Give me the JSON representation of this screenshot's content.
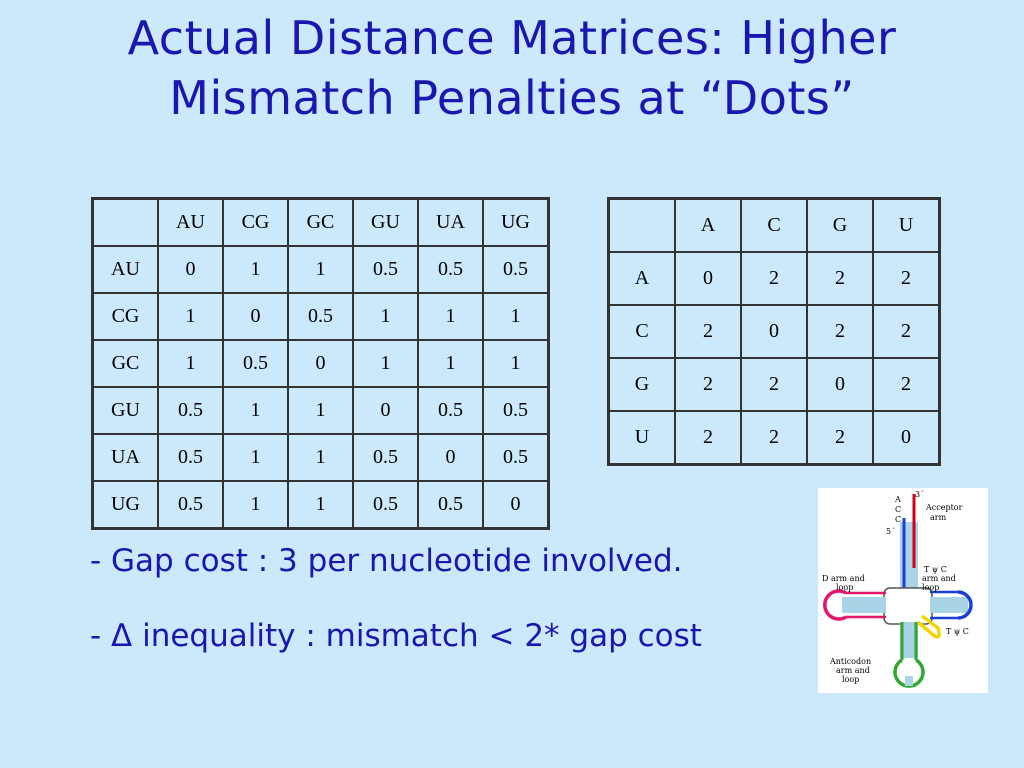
{
  "slide": {
    "title_line1": "Actual Distance Matrices: Higher",
    "title_line2": "Mismatch Penalties at “Dots”",
    "bullets": [
      "- Gap cost : 3 per nucleotide involved.",
      "- Δ inequality : mismatch < 2* gap cost"
    ]
  },
  "pair_matrix": {
    "headers": [
      "",
      "AU",
      "CG",
      "GC",
      "GU",
      "UA",
      "UG"
    ],
    "rows": [
      [
        "AU",
        "0",
        "1",
        "1",
        "0.5",
        "0.5",
        "0.5"
      ],
      [
        "CG",
        "1",
        "0",
        "0.5",
        "1",
        "1",
        "1"
      ],
      [
        "GC",
        "1",
        "0.5",
        "0",
        "1",
        "1",
        "1"
      ],
      [
        "GU",
        "0.5",
        "1",
        "1",
        "0",
        "0.5",
        "0.5"
      ],
      [
        "UA",
        "0.5",
        "1",
        "1",
        "0.5",
        "0",
        "0.5"
      ],
      [
        "UG",
        "0.5",
        "1",
        "1",
        "0.5",
        "0.5",
        "0"
      ]
    ]
  },
  "base_matrix": {
    "headers": [
      "",
      "A",
      "C",
      "G",
      "U"
    ],
    "rows": [
      [
        "A",
        "0",
        "2",
        "2",
        "2"
      ],
      [
        "C",
        "2",
        "0",
        "2",
        "2"
      ],
      [
        "G",
        "2",
        "2",
        "0",
        "2"
      ],
      [
        "U",
        "2",
        "2",
        "2",
        "0"
      ]
    ]
  },
  "trna_figure": {
    "labels": {
      "three_prime": "3´",
      "five_prime": "5´",
      "acceptor_1": "Acceptor",
      "acceptor_2": "arm",
      "a": "A",
      "c1": "C",
      "c2": "C",
      "darm_1": "D arm and",
      "darm_2": "loop",
      "tc_1": "T ψ C",
      "tc_2": "arm and",
      "tc_3": "loop",
      "tc_small": "T ψ C",
      "anti_1": "Anticodon",
      "anti_2": "arm and",
      "anti_3": "loop"
    },
    "colors": {
      "acceptor": "#d0021b",
      "d_arm": "#e0186c",
      "t_arm": "#1a3fd6",
      "anticodon": "#2ea82e",
      "variable": "#f2d600",
      "stem": "#a8d4e6"
    }
  }
}
